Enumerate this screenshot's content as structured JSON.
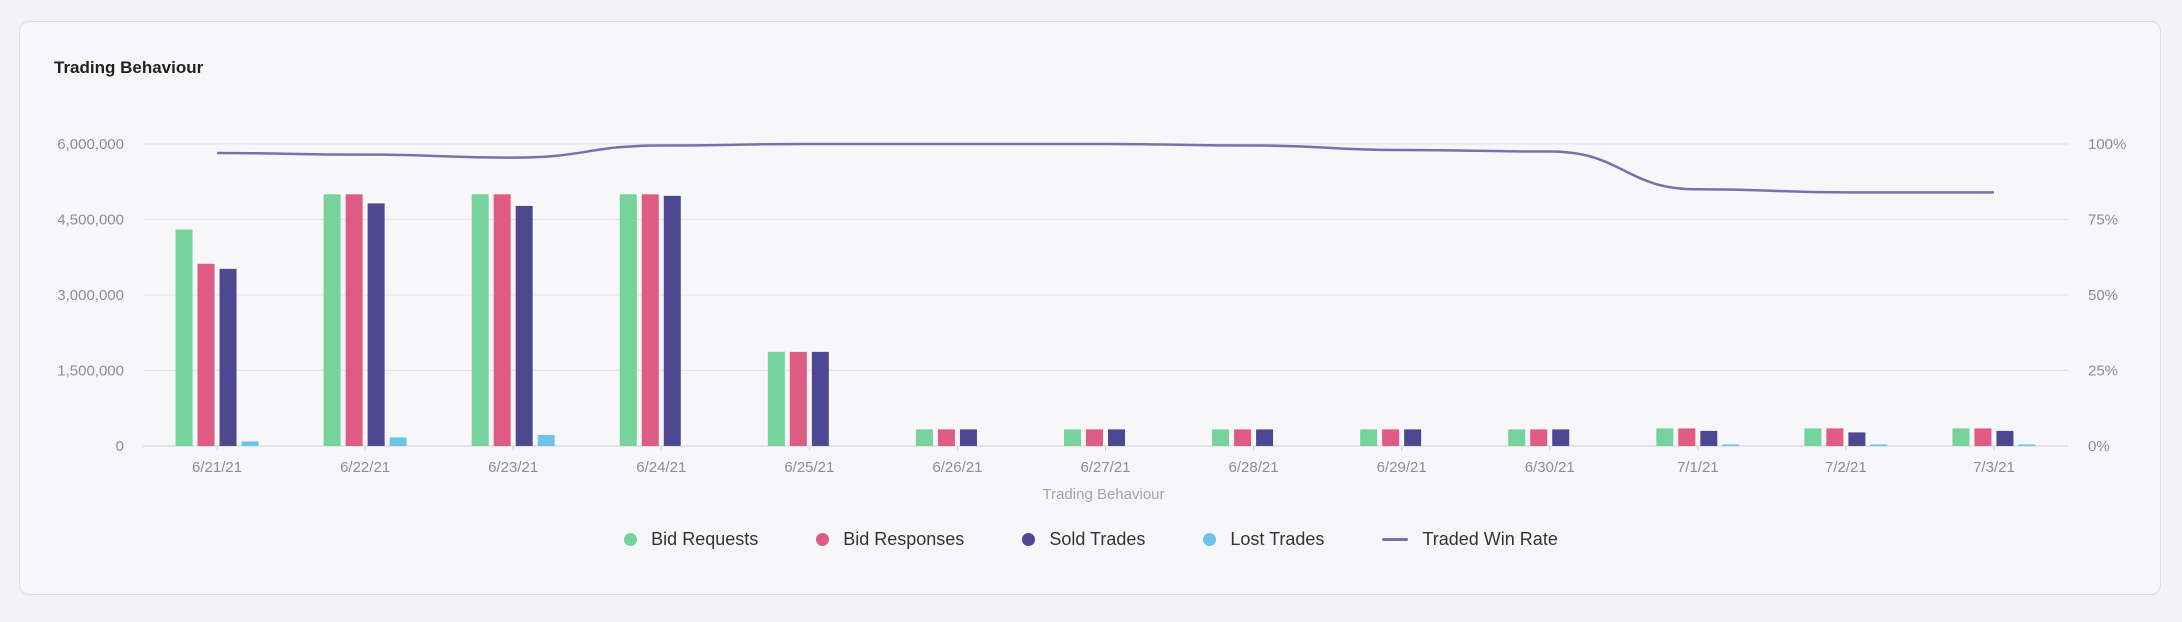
{
  "panel": {
    "title": "Trading Behaviour"
  },
  "chart_data": {
    "type": "bar",
    "categories": [
      "6/21/21",
      "6/22/21",
      "6/23/21",
      "6/24/21",
      "6/25/21",
      "6/26/21",
      "6/27/21",
      "6/28/21",
      "6/29/21",
      "6/30/21",
      "7/1/21",
      "7/2/21",
      "7/3/21"
    ],
    "xlabel": "Trading Behaviour",
    "ylim": [
      0,
      6000000
    ],
    "y_ticks": [
      "6,000,000",
      "4,500,000",
      "3,000,000",
      "1,500,000",
      "0"
    ],
    "y2lim": [
      0,
      100
    ],
    "y2_ticks": [
      "100%",
      "75%",
      "50%",
      "25%",
      "0%"
    ],
    "grid": true,
    "legend_position": "bottom",
    "series": [
      {
        "name": "Bid Requests",
        "color": "#76d39b",
        "values": [
          4300000,
          5000000,
          5000000,
          5000000,
          1870000,
          330000,
          330000,
          330000,
          330000,
          330000,
          350000,
          350000,
          350000
        ]
      },
      {
        "name": "Bid Responses",
        "color": "#df5b84",
        "values": [
          3620000,
          5000000,
          5000000,
          5000000,
          1870000,
          330000,
          330000,
          330000,
          330000,
          330000,
          350000,
          350000,
          350000
        ]
      },
      {
        "name": "Sold Trades",
        "color": "#4e4791",
        "values": [
          3520000,
          4820000,
          4770000,
          4970000,
          1870000,
          330000,
          330000,
          330000,
          330000,
          330000,
          300000,
          270000,
          300000
        ]
      },
      {
        "name": "Lost Trades",
        "color": "#6cc3ea",
        "values": [
          90000,
          170000,
          220000,
          0,
          0,
          0,
          0,
          0,
          0,
          0,
          30000,
          30000,
          30000
        ]
      }
    ],
    "line_series": {
      "name": "Traded Win Rate",
      "color": "#7b6fb0",
      "axis": "right",
      "values": [
        97,
        96.5,
        95.5,
        99.5,
        100,
        100,
        100,
        99.5,
        98,
        97.5,
        85,
        84,
        84
      ]
    }
  },
  "legend": [
    {
      "label": "Bid Requests",
      "color": "#76d39b",
      "kind": "dot"
    },
    {
      "label": "Bid Responses",
      "color": "#df5b84",
      "kind": "dot"
    },
    {
      "label": "Sold Trades",
      "color": "#4e4791",
      "kind": "dot"
    },
    {
      "label": "Lost Trades",
      "color": "#6cc3ea",
      "kind": "dot"
    },
    {
      "label": "Traded Win Rate",
      "color": "#7b6fb0",
      "kind": "line"
    }
  ]
}
